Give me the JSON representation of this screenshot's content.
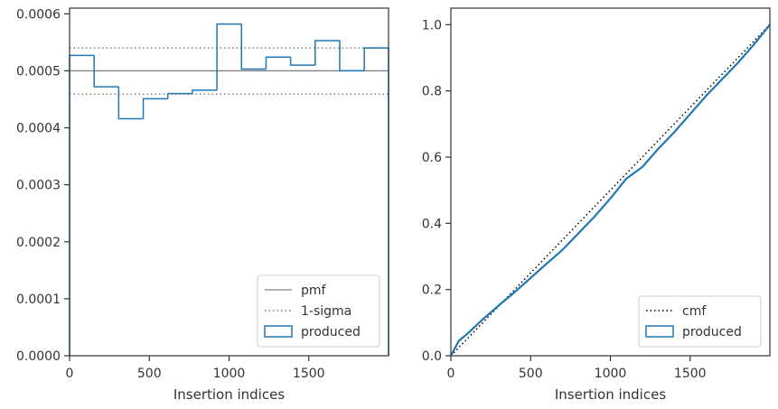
{
  "colors": {
    "produced": "#1f77b4",
    "pmf": "#808080",
    "sigma": "#808080",
    "cmf": "#000000",
    "frame": "#333333"
  },
  "chart_data": [
    {
      "type": "step-histogram",
      "xlabel": "Insertion indices",
      "ylabel": "",
      "xlim": [
        0,
        2000
      ],
      "ylim": [
        0,
        0.00061
      ],
      "xticks": [
        0,
        500,
        1000,
        1500
      ],
      "xtick_labels": [
        "0",
        "500",
        "1000",
        "1500"
      ],
      "yticks": [
        0,
        0.0001,
        0.0002,
        0.0003,
        0.0004,
        0.0005,
        0.0006
      ],
      "ytick_labels": [
        "0.0000",
        "0.0001",
        "0.0002",
        "0.0003",
        "0.0004",
        "0.0005",
        "0.0006"
      ],
      "pmf": 0.0005,
      "sigma": [
        0.000459,
        0.00054
      ],
      "bin_edges": [
        0,
        154,
        308,
        462,
        616,
        770,
        924,
        1078,
        1232,
        1386,
        1540,
        1694,
        1848,
        2000
      ],
      "counts": [
        0.000527,
        0.000472,
        0.000416,
        0.000451,
        0.00046,
        0.000466,
        0.000582,
        0.000503,
        0.000524,
        0.00051,
        0.000553,
        0.0005,
        0.00054
      ],
      "legend": {
        "position": "lower right",
        "entries": [
          {
            "key": "pmf",
            "label": "pmf",
            "style": "line"
          },
          {
            "key": "sigma",
            "label": "1-sigma",
            "style": "dotted"
          },
          {
            "key": "produced",
            "label": "produced",
            "style": "patch"
          }
        ]
      }
    },
    {
      "type": "line",
      "xlabel": "Insertion indices",
      "ylabel": "",
      "xlim": [
        0,
        2000
      ],
      "ylim": [
        0,
        1.05
      ],
      "xticks": [
        0,
        500,
        1000,
        1500
      ],
      "xtick_labels": [
        "0",
        "500",
        "1000",
        "1500"
      ],
      "yticks": [
        0,
        0.2,
        0.4,
        0.6,
        0.8,
        1.0
      ],
      "ytick_labels": [
        "0.0",
        "0.2",
        "0.4",
        "0.6",
        "0.8",
        "1.0"
      ],
      "cmf": {
        "x": [
          0,
          2000
        ],
        "y": [
          0,
          1
        ]
      },
      "produced": {
        "x": [
          0,
          50,
          100,
          200,
          300,
          400,
          500,
          600,
          700,
          800,
          900,
          1000,
          1100,
          1200,
          1300,
          1400,
          1500,
          1600,
          1700,
          1800,
          1900,
          2000
        ],
        "y": [
          0,
          0.045,
          0.065,
          0.11,
          0.152,
          0.192,
          0.235,
          0.278,
          0.32,
          0.37,
          0.42,
          0.475,
          0.535,
          0.57,
          0.625,
          0.675,
          0.73,
          0.785,
          0.835,
          0.885,
          0.94,
          1.0
        ]
      },
      "legend": {
        "position": "lower right",
        "entries": [
          {
            "key": "cmf",
            "label": "cmf",
            "style": "dotted"
          },
          {
            "key": "produced",
            "label": "produced",
            "style": "patch"
          }
        ]
      }
    }
  ]
}
